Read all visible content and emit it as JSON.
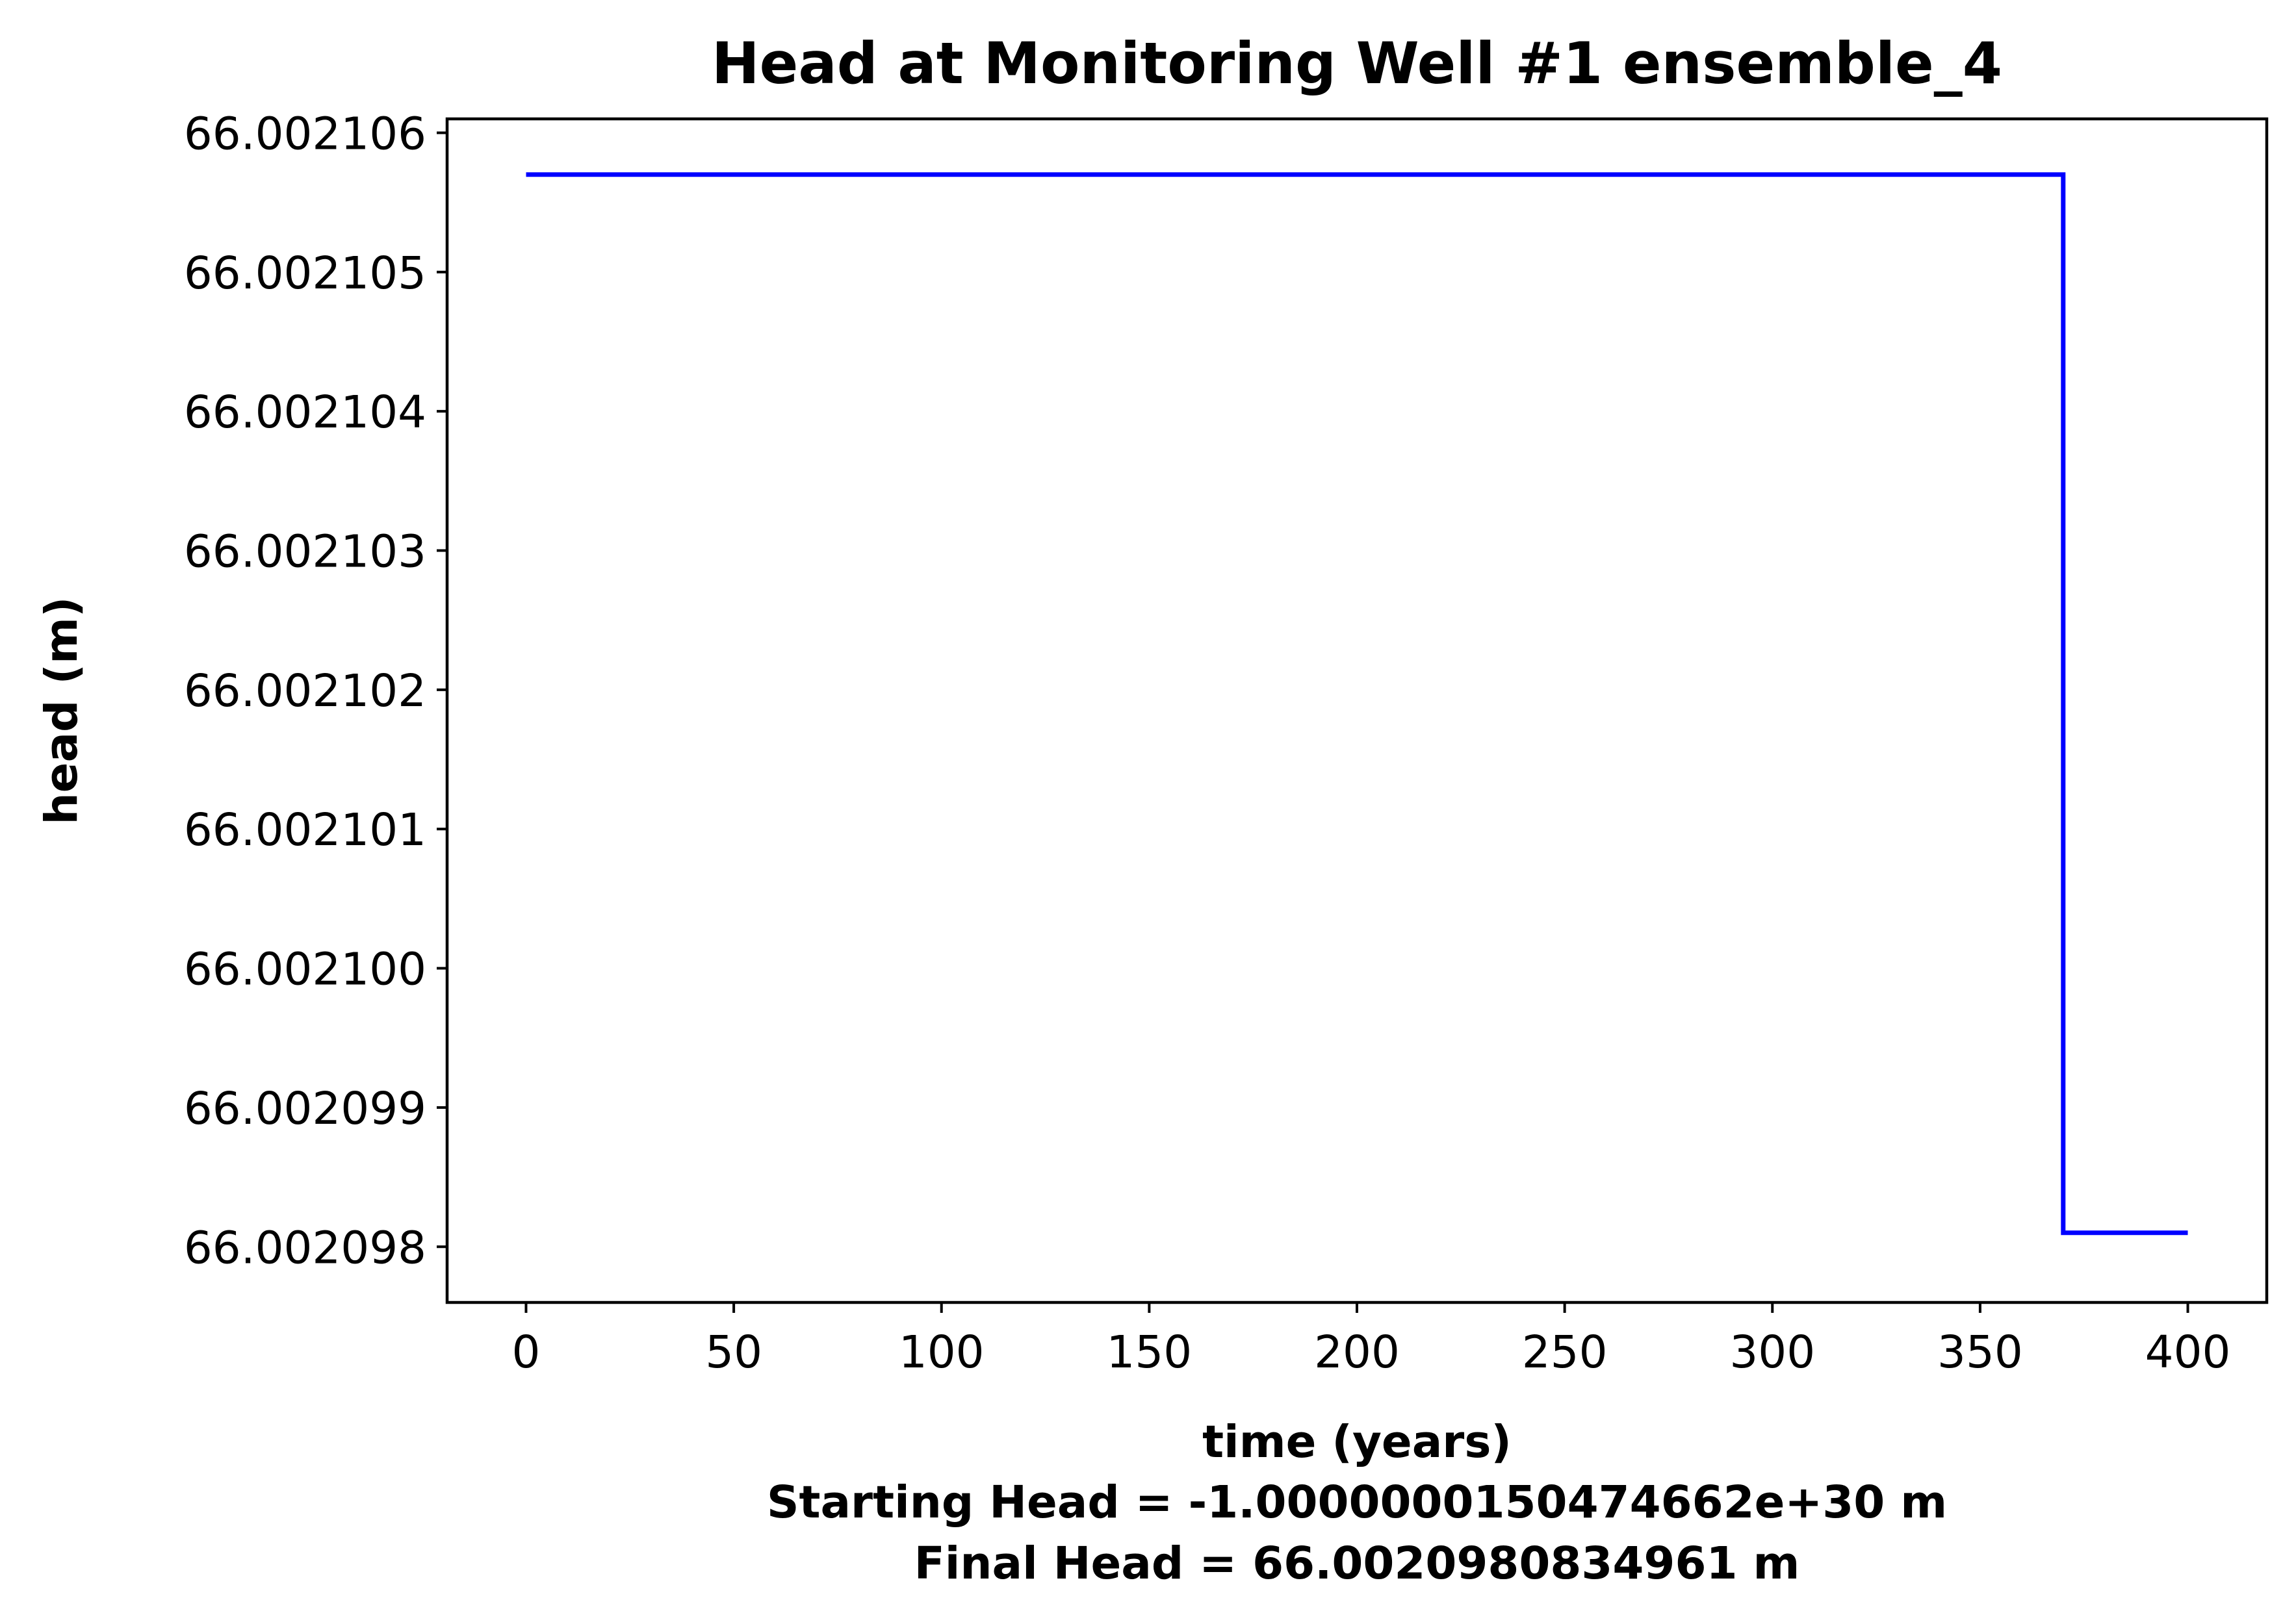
{
  "chart_data": {
    "type": "line",
    "title": "Head at Monitoring Well #1 ensemble_4",
    "xlabel": "time (years)",
    "ylabel": "head (m)",
    "xlim": [
      -19,
      419
    ],
    "ylim": [
      66.0020976,
      66.0021061
    ],
    "xticks": [
      0,
      50,
      100,
      150,
      200,
      250,
      300,
      350,
      400
    ],
    "xtick_labels": [
      "0",
      "50",
      "100",
      "150",
      "200",
      "250",
      "300",
      "350",
      "400"
    ],
    "yticks": [
      66.002098,
      66.002099,
      66.0021,
      66.002101,
      66.002102,
      66.002103,
      66.002104,
      66.002105,
      66.002106
    ],
    "ytick_labels": [
      "66.002098",
      "66.002099",
      "66.002100",
      "66.002101",
      "66.002102",
      "66.002103",
      "66.002104",
      "66.002105",
      "66.002106"
    ],
    "series": [
      {
        "color": "#0000ff",
        "x": [
          0,
          370,
          370,
          400
        ],
        "y": [
          66.0021057,
          66.0021057,
          66.0020981,
          66.0020981
        ]
      }
    ],
    "footer_lines": [
      "Starting Head = -1.0000000150474662e+30 m",
      "Final Head = 66.0020980834961 m"
    ],
    "grid": false,
    "legend": "none"
  }
}
